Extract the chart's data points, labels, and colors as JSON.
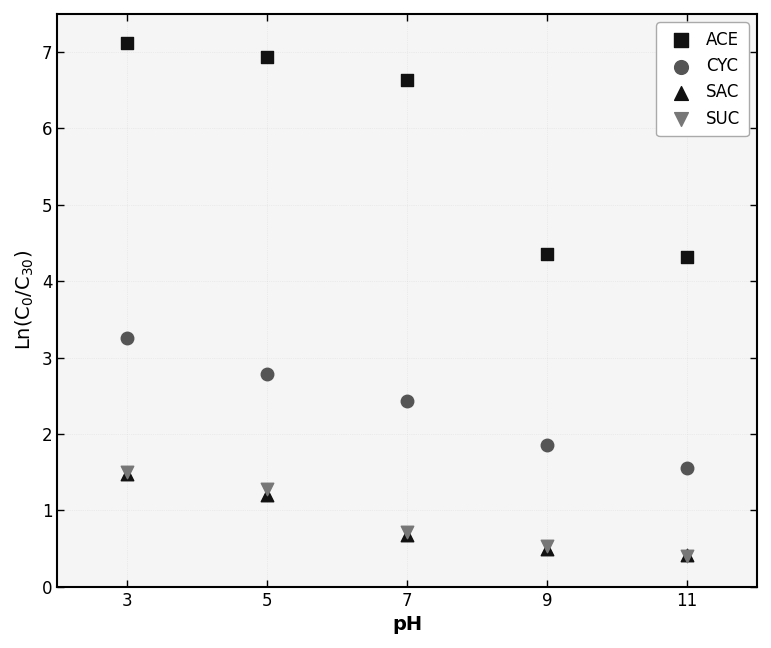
{
  "title": "",
  "xlabel": "pH",
  "xlim": [
    2,
    12
  ],
  "ylim": [
    0,
    7.5
  ],
  "xticks": [
    3,
    5,
    7,
    9,
    11
  ],
  "yticks": [
    0,
    1,
    2,
    3,
    4,
    5,
    6,
    7
  ],
  "series": [
    {
      "key": "ACE",
      "x": [
        3,
        5,
        7,
        9,
        11
      ],
      "y": [
        7.12,
        6.93,
        6.63,
        4.35,
        4.32
      ],
      "marker": "s",
      "color": "#111111",
      "markersize": 9,
      "label": "ACE"
    },
    {
      "key": "CYC",
      "x": [
        3,
        5,
        7,
        9,
        11
      ],
      "y": [
        3.25,
        2.78,
        2.43,
        1.85,
        1.55
      ],
      "marker": "o",
      "color": "#555555",
      "markersize": 9,
      "label": "CYC"
    },
    {
      "key": "SAC",
      "x": [
        3,
        5,
        7,
        9,
        11
      ],
      "y": [
        1.47,
        1.2,
        0.68,
        0.5,
        0.42
      ],
      "marker": "^",
      "color": "#111111",
      "markersize": 9,
      "label": "SAC"
    },
    {
      "key": "SUC",
      "x": [
        3,
        5,
        7,
        9,
        11
      ],
      "y": [
        1.5,
        1.28,
        0.72,
        0.53,
        0.4
      ],
      "marker": "v",
      "color": "#777777",
      "markersize": 9,
      "label": "SUC"
    }
  ],
  "bg_color": "#ffffff",
  "plot_bg_color": "#f5f5f5",
  "legend_fontsize": 12,
  "axis_label_fontsize": 14,
  "tick_fontsize": 12,
  "grid_color": "#cccccc",
  "grid_alpha": 0.5
}
